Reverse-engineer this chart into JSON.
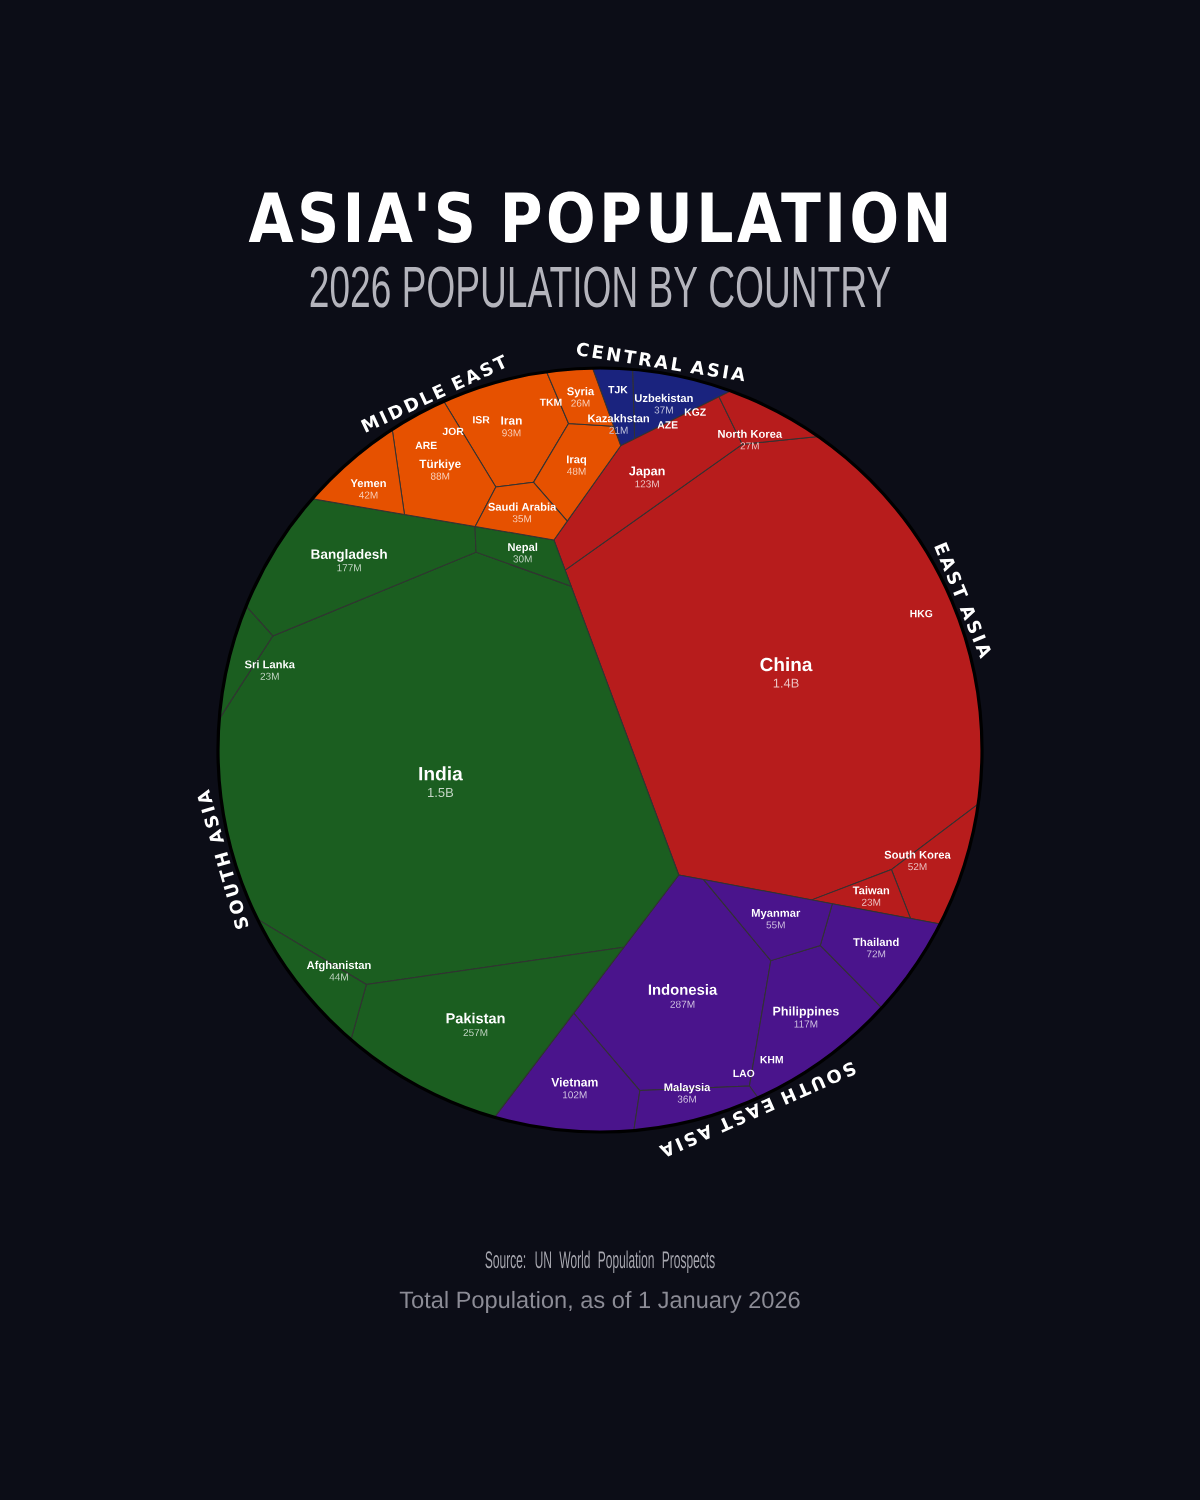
{
  "chart_data": {
    "type": "other",
    "title": "ASIA'S POPULATION",
    "subtitle": "2026 POPULATION BY COUNTRY",
    "categories": [
      "Uzbekistan",
      "TJK",
      "KGZ",
      "TKM",
      "AZE",
      "Kazakhstan",
      "China",
      "Japan",
      "South Korea",
      "HKG",
      "North Korea",
      "Taiwan",
      "Indonesia",
      "Philippines",
      "Vietnam",
      "Thailand",
      "Myanmar",
      "LAO",
      "KHM",
      "Malaysia",
      "India",
      "Pakistan",
      "Bangladesh",
      "Afghanistan",
      "Nepal",
      "Sri Lanka",
      "Iran",
      "Türkiye",
      "Iraq",
      "Yemen",
      "Saudi Arabia",
      "JOR",
      "ISR",
      "ARE",
      "Syria"
    ],
    "series": [
      {
        "name": "CENTRAL ASIA",
        "color": "#1a237e",
        "values": [
          37000000,
          null,
          null,
          null,
          null,
          21000000,
          null,
          null,
          null,
          null,
          null,
          null,
          null,
          null,
          null,
          null,
          null,
          null,
          null,
          null,
          null,
          null,
          null,
          null,
          null,
          null,
          null,
          null,
          null,
          null,
          null,
          null,
          null,
          null,
          null
        ],
        "value_labels": [
          "37M",
          null,
          null,
          null,
          null,
          "21M",
          null,
          null,
          null,
          null,
          null,
          null,
          null,
          null,
          null,
          null,
          null,
          null,
          null,
          null,
          null,
          null,
          null,
          null,
          null,
          null,
          null,
          null,
          null,
          null,
          null,
          null,
          null,
          null,
          null
        ]
      },
      {
        "name": "EAST ASIA",
        "color": "#b71c1c",
        "values": [
          null,
          null,
          null,
          null,
          null,
          null,
          1400000000,
          123000000,
          52000000,
          null,
          27000000,
          23000000,
          null,
          null,
          null,
          null,
          null,
          null,
          null,
          null,
          null,
          null,
          null,
          null,
          null,
          null,
          null,
          null,
          null,
          null,
          null,
          null,
          null,
          null,
          null
        ],
        "value_labels": [
          null,
          null,
          null,
          null,
          null,
          null,
          "1.4B",
          "123M",
          "52M",
          null,
          "27M",
          "23M",
          null,
          null,
          null,
          null,
          null,
          null,
          null,
          null,
          null,
          null,
          null,
          null,
          null,
          null,
          null,
          null,
          null,
          null,
          null,
          null,
          null,
          null,
          null
        ]
      },
      {
        "name": "SOUTH EAST ASIA",
        "color": "#4a148c",
        "values": [
          null,
          null,
          null,
          null,
          null,
          null,
          null,
          null,
          null,
          null,
          null,
          null,
          287000000,
          117000000,
          102000000,
          72000000,
          55000000,
          null,
          null,
          36000000,
          null,
          null,
          null,
          null,
          null,
          null,
          null,
          null,
          null,
          null,
          null,
          null,
          null,
          null,
          null
        ],
        "value_labels": [
          null,
          null,
          null,
          null,
          null,
          null,
          null,
          null,
          null,
          null,
          null,
          null,
          "287M",
          "117M",
          "102M",
          "72M",
          "55M",
          null,
          null,
          "36M",
          null,
          null,
          null,
          null,
          null,
          null,
          null,
          null,
          null,
          null,
          null,
          null,
          null,
          null,
          null
        ]
      },
      {
        "name": "SOUTH ASIA",
        "color": "#1b5e20",
        "values": [
          null,
          null,
          null,
          null,
          null,
          null,
          null,
          null,
          null,
          null,
          null,
          null,
          null,
          null,
          null,
          null,
          null,
          null,
          null,
          null,
          1500000000,
          257000000,
          177000000,
          44000000,
          30000000,
          23000000,
          null,
          null,
          null,
          null,
          null,
          null,
          null,
          null,
          null
        ],
        "value_labels": [
          null,
          null,
          null,
          null,
          null,
          null,
          null,
          null,
          null,
          null,
          null,
          null,
          null,
          null,
          null,
          null,
          null,
          null,
          null,
          null,
          "1.5B",
          "257M",
          "177M",
          "44M",
          "30M",
          "23M",
          null,
          null,
          null,
          null,
          null,
          null,
          null,
          null,
          null
        ]
      },
      {
        "name": "MIDDLE EAST",
        "color": "#e65100",
        "values": [
          null,
          null,
          null,
          null,
          null,
          null,
          null,
          null,
          null,
          null,
          null,
          null,
          null,
          null,
          null,
          null,
          null,
          null,
          null,
          null,
          null,
          null,
          null,
          null,
          null,
          null,
          93000000,
          88000000,
          48000000,
          42000000,
          35000000,
          null,
          null,
          null,
          26000000
        ],
        "value_labels": [
          null,
          null,
          null,
          null,
          null,
          null,
          null,
          null,
          null,
          null,
          null,
          null,
          null,
          null,
          null,
          null,
          null,
          null,
          null,
          null,
          null,
          null,
          null,
          null,
          null,
          null,
          "93M",
          "88M",
          "48M",
          "42M",
          "35M",
          null,
          null,
          null,
          "26M"
        ]
      }
    ],
    "annotations": [
      "Source: UN World Population Prospects",
      "Total Population, as of 1 January 2026"
    ]
  }
}
